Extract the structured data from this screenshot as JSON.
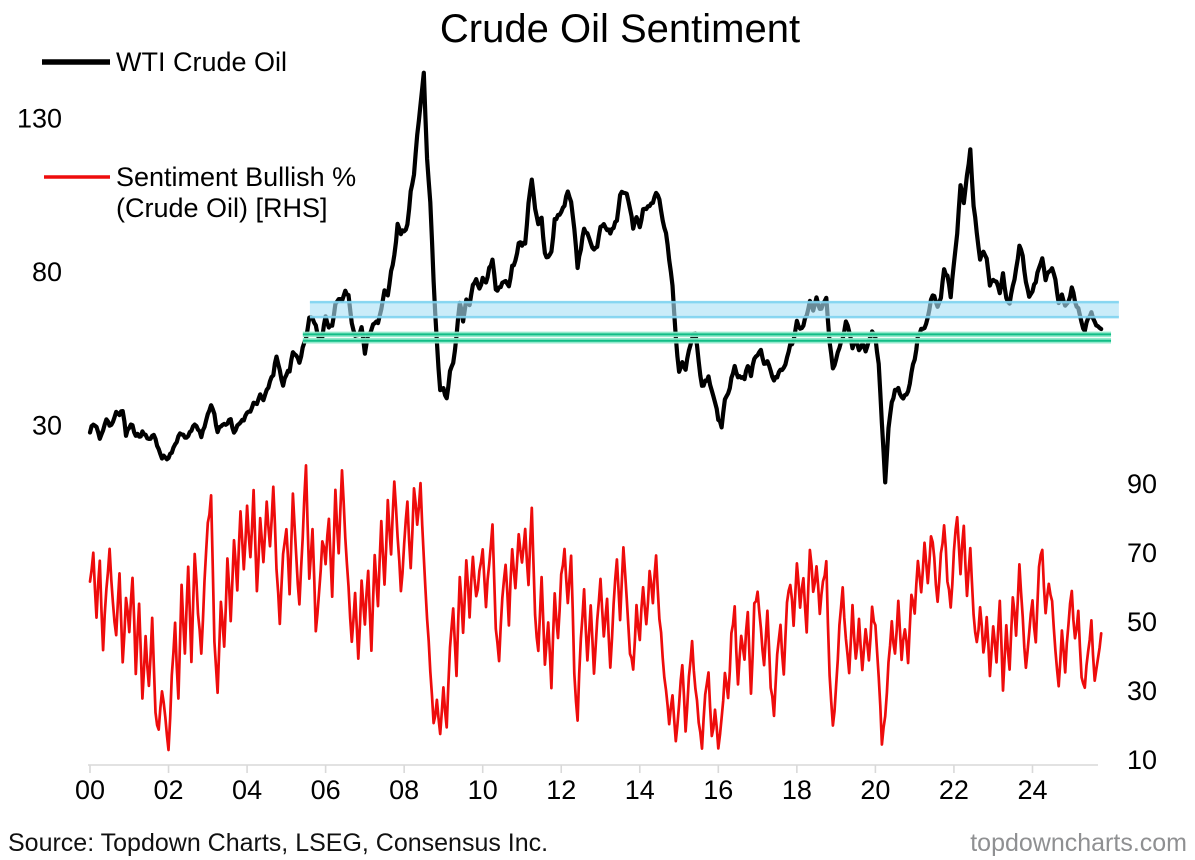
{
  "title": "Crude Oil Sentiment",
  "legend": {
    "wti_label": "WTI Crude Oil",
    "sentiment_label_line1": "Sentiment Bullish %",
    "sentiment_label_line2": "(Crude Oil) [RHS]"
  },
  "source_note": "Source: Topdown Charts, LSEG, Consensus Inc.",
  "watermark": "topdowncharts.com",
  "chart_data": {
    "type": "line",
    "title": "Crude Oil Sentiment",
    "grid": "off",
    "legend_position": "top-left",
    "axis_color": "#d9d9d9",
    "x_axis": {
      "labels": [
        "00",
        "02",
        "04",
        "06",
        "08",
        "10",
        "12",
        "14",
        "16",
        "18",
        "20",
        "22",
        "24"
      ],
      "tick_years": [
        2000,
        2002,
        2004,
        2006,
        2008,
        2010,
        2012,
        2014,
        2016,
        2018,
        2020,
        2022,
        2024
      ],
      "range_years": [
        2000,
        2025.9
      ]
    },
    "left_axis": {
      "title": "WTI Crude Oil price (USD)",
      "labels": [
        "130",
        "80",
        "30"
      ],
      "values": [
        130,
        80,
        30
      ]
    },
    "right_axis": {
      "title": "Sentiment Bullish % (Crude Oil)",
      "labels": [
        "90",
        "70",
        "50",
        "30",
        "10"
      ],
      "values": [
        90,
        70,
        50,
        30,
        10
      ]
    },
    "series": [
      {
        "name": "WTI Crude Oil",
        "axis": "left",
        "color": "#000000",
        "start_year": 2000,
        "interval_months": 1,
        "values": [
          27,
          30,
          30,
          26,
          29,
          32,
          30,
          31,
          34,
          33,
          34,
          27,
          29,
          30,
          27,
          27,
          28,
          27,
          26,
          27,
          26,
          22,
          19,
          19,
          20,
          21,
          24,
          26,
          27,
          26,
          27,
          28,
          30,
          29,
          26,
          29,
          33,
          36,
          34,
          28,
          29,
          31,
          31,
          32,
          28,
          30,
          31,
          32,
          34,
          35,
          37,
          37,
          40,
          38,
          41,
          45,
          46,
          53,
          48,
          43,
          47,
          48,
          54,
          53,
          50,
          56,
          59,
          65,
          65,
          62,
          58,
          59,
          65,
          62,
          63,
          70,
          71,
          71,
          74,
          73,
          64,
          59,
          59,
          62,
          54,
          59,
          61,
          64,
          63,
          68,
          74,
          72,
          80,
          86,
          95,
          92,
          93,
          95,
          106,
          112,
          125,
          134,
          145,
          117,
          103,
          77,
          57,
          42,
          42,
          39,
          48,
          50,
          59,
          70,
          64,
          71,
          69,
          76,
          78,
          74,
          78,
          76,
          81,
          84,
          74,
          75,
          76,
          77,
          75,
          82,
          84,
          89,
          89,
          89,
          103,
          110,
          101,
          96,
          97,
          86,
          85,
          86,
          97,
          98,
          100,
          102,
          106,
          103,
          94,
          82,
          88,
          94,
          92,
          89,
          87,
          88,
          95,
          95,
          93,
          92,
          95,
          96,
          105,
          106,
          106,
          100,
          94,
          98,
          95,
          101,
          101,
          102,
          102,
          106,
          103,
          97,
          93,
          84,
          76,
          59,
          47,
          51,
          48,
          54,
          59,
          60,
          51,
          43,
          45,
          46,
          42,
          37,
          32,
          30,
          38,
          41,
          46,
          49,
          45,
          45,
          45,
          50,
          46,
          52,
          53,
          54,
          50,
          51,
          48,
          45,
          46,
          48,
          49,
          52,
          57,
          58,
          64,
          62,
          63,
          66,
          70,
          68,
          71,
          68,
          70,
          71,
          57,
          49,
          51,
          55,
          58,
          64,
          61,
          55,
          57,
          55,
          57,
          54,
          57,
          60,
          58,
          50,
          30,
          12,
          29,
          38,
          41,
          42,
          40,
          40,
          41,
          47,
          52,
          59,
          62,
          62,
          65,
          71,
          72,
          68,
          72,
          81,
          79,
          72,
          83,
          92,
          108,
          102,
          112,
          120,
          101,
          92,
          84,
          87,
          84,
          76,
          78,
          77,
          73,
          79,
          72,
          70,
          76,
          81,
          89,
          85,
          77,
          72,
          74,
          77,
          81,
          85,
          78,
          80,
          81,
          77,
          70,
          72,
          69,
          70,
          75,
          71,
          68,
          63,
          61,
          65,
          67,
          64,
          63,
          61
        ]
      },
      {
        "name": "Sentiment Bullish % (Crude Oil) [RHS]",
        "axis": "right",
        "color": "#ee0c0c",
        "start_year": 2000,
        "interval_months": 1,
        "values": [
          62,
          70,
          50,
          68,
          42,
          60,
          72,
          55,
          45,
          65,
          38,
          56,
          48,
          62,
          35,
          55,
          28,
          45,
          32,
          50,
          25,
          18,
          30,
          22,
          14,
          35,
          50,
          28,
          60,
          42,
          65,
          38,
          70,
          52,
          40,
          62,
          80,
          88,
          45,
          30,
          55,
          42,
          68,
          50,
          75,
          58,
          82,
          65,
          85,
          70,
          88,
          60,
          80,
          68,
          85,
          72,
          90,
          65,
          50,
          70,
          78,
          58,
          88,
          70,
          55,
          75,
          95,
          62,
          78,
          48,
          60,
          74,
          66,
          80,
          58,
          88,
          70,
          94,
          75,
          60,
          45,
          58,
          40,
          62,
          50,
          65,
          42,
          70,
          55,
          78,
          62,
          85,
          70,
          90,
          75,
          60,
          72,
          85,
          65,
          88,
          78,
          90,
          70,
          50,
          35,
          22,
          28,
          18,
          32,
          20,
          42,
          55,
          35,
          62,
          48,
          68,
          52,
          70,
          58,
          66,
          72,
          55,
          68,
          78,
          48,
          38,
          58,
          66,
          50,
          70,
          60,
          76,
          68,
          78,
          60,
          82,
          52,
          42,
          62,
          38,
          50,
          32,
          58,
          46,
          64,
          72,
          55,
          68,
          35,
          22,
          45,
          60,
          40,
          55,
          35,
          50,
          62,
          45,
          58,
          38,
          55,
          68,
          50,
          72,
          58,
          42,
          35,
          55,
          45,
          60,
          50,
          65,
          55,
          70,
          52,
          40,
          30,
          20,
          28,
          15,
          25,
          38,
          18,
          35,
          45,
          30,
          20,
          14,
          28,
          35,
          18,
          24,
          13,
          22,
          35,
          28,
          48,
          55,
          32,
          45,
          38,
          52,
          30,
          55,
          60,
          48,
          38,
          52,
          30,
          22,
          40,
          48,
          35,
          55,
          62,
          50,
          66,
          55,
          62,
          48,
          70,
          58,
          66,
          52,
          62,
          68,
          35,
          20,
          32,
          50,
          60,
          45,
          35,
          55,
          40,
          52,
          35,
          48,
          38,
          55,
          48,
          35,
          15,
          22,
          38,
          50,
          42,
          55,
          40,
          48,
          38,
          58,
          52,
          68,
          58,
          72,
          62,
          76,
          68,
          55,
          70,
          78,
          62,
          55,
          70,
          80,
          65,
          78,
          58,
          72,
          52,
          45,
          55,
          40,
          52,
          35,
          50,
          38,
          55,
          30,
          48,
          35,
          58,
          45,
          68,
          52,
          38,
          48,
          55,
          45,
          65,
          72,
          52,
          62,
          55,
          42,
          32,
          48,
          36,
          50,
          58,
          45,
          52,
          35,
          30,
          42,
          50,
          33,
          38,
          48
        ]
      }
    ],
    "annotations": {
      "resistance_band": {
        "axis": "left",
        "value_from": 65.3,
        "value_to": 70.2,
        "year_from": 2005.6,
        "year_to": 2026.2,
        "fill": "#a9e1f6",
        "edge": "#7ed3f0"
      },
      "support_lines": {
        "axis": "left",
        "values": [
          59.7,
          57.6
        ],
        "year_from": 2005.42,
        "year_to": 2026.0,
        "color_core": "#10bd86",
        "color_halo": "#8fe9ca"
      }
    }
  },
  "colors": {
    "wti": "#000000",
    "sentiment": "#ee0c0c",
    "axis": "#d9d9d9",
    "text": "#000000",
    "watermark": "#8f9092"
  }
}
